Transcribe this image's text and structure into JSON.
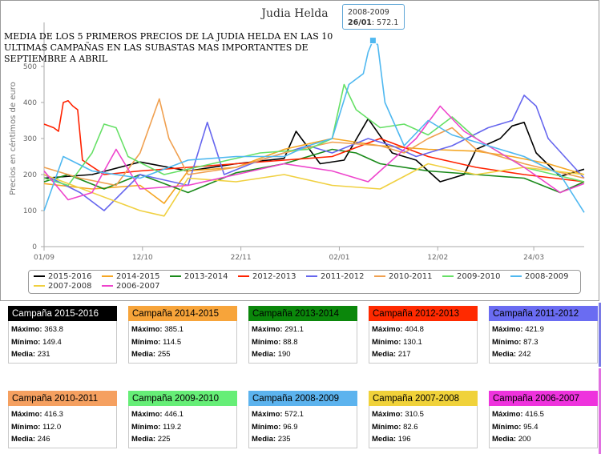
{
  "page": {
    "subtitle": "MEDIA DE LOS 5 PRIMEROS PRECIOS DE LA JUDIA HELDA EN LAS 10 ULTIMAS CAMPAÑAS EN LAS SUBASTAS MAS IMPORTANTES DE SEPTIEMBRE A ABRIL",
    "tooltip": {
      "series": "2008-2009",
      "date": "26/01",
      "value": "572.1"
    }
  },
  "chart_data": {
    "type": "line",
    "title": "Judia Helda",
    "ylabel": "Precios en céntimos de euro",
    "xlabel": "",
    "ylim": [
      0,
      600
    ],
    "yticks": [
      0,
      100,
      200,
      300,
      400,
      500
    ],
    "x": [
      "01/09",
      "12/10",
      "22/11",
      "02/01",
      "12/02",
      "24/03"
    ],
    "x_tick_days": [
      0,
      41,
      82,
      123,
      164,
      204
    ],
    "x_max_day": 225,
    "grid": false,
    "legend_position": "bottom",
    "series": [
      {
        "name": "2015-2016",
        "color": "#000000",
        "points": [
          [
            0,
            190
          ],
          [
            20,
            200
          ],
          [
            40,
            235
          ],
          [
            60,
            210
          ],
          [
            80,
            230
          ],
          [
            100,
            245
          ],
          [
            105,
            320
          ],
          [
            115,
            230
          ],
          [
            125,
            240
          ],
          [
            135,
            355
          ],
          [
            145,
            260
          ],
          [
            155,
            240
          ],
          [
            165,
            180
          ],
          [
            175,
            200
          ],
          [
            180,
            270
          ],
          [
            190,
            300
          ],
          [
            195,
            335
          ],
          [
            200,
            345
          ],
          [
            205,
            260
          ],
          [
            215,
            195
          ],
          [
            225,
            215
          ]
        ]
      },
      {
        "name": "2014-2015",
        "color": "#f5a623",
        "points": [
          [
            0,
            175
          ],
          [
            20,
            160
          ],
          [
            40,
            170
          ],
          [
            50,
            120
          ],
          [
            60,
            210
          ],
          [
            80,
            220
          ],
          [
            100,
            270
          ],
          [
            120,
            300
          ],
          [
            140,
            280
          ],
          [
            160,
            270
          ],
          [
            180,
            265
          ],
          [
            195,
            250
          ],
          [
            210,
            230
          ],
          [
            225,
            200
          ]
        ]
      },
      {
        "name": "2013-2014",
        "color": "#1a8a1a",
        "points": [
          [
            0,
            180
          ],
          [
            10,
            200
          ],
          [
            25,
            160
          ],
          [
            40,
            200
          ],
          [
            60,
            150
          ],
          [
            80,
            205
          ],
          [
            100,
            230
          ],
          [
            120,
            270
          ],
          [
            130,
            260
          ],
          [
            140,
            230
          ],
          [
            160,
            210
          ],
          [
            180,
            200
          ],
          [
            200,
            190
          ],
          [
            215,
            150
          ],
          [
            225,
            180
          ]
        ]
      },
      {
        "name": "2012-2013",
        "color": "#ff2200",
        "points": [
          [
            0,
            340
          ],
          [
            4,
            330
          ],
          [
            6,
            320
          ],
          [
            8,
            400
          ],
          [
            10,
            405
          ],
          [
            12,
            390
          ],
          [
            14,
            380
          ],
          [
            16,
            240
          ],
          [
            25,
            200
          ],
          [
            40,
            210
          ],
          [
            60,
            220
          ],
          [
            80,
            230
          ],
          [
            100,
            240
          ],
          [
            120,
            250
          ],
          [
            140,
            300
          ],
          [
            160,
            250
          ],
          [
            180,
            220
          ],
          [
            200,
            200
          ],
          [
            225,
            180
          ]
        ]
      },
      {
        "name": "2011-2012",
        "color": "#6666ee",
        "points": [
          [
            0,
            200
          ],
          [
            15,
            150
          ],
          [
            25,
            100
          ],
          [
            40,
            200
          ],
          [
            60,
            170
          ],
          [
            68,
            345
          ],
          [
            75,
            200
          ],
          [
            90,
            240
          ],
          [
            110,
            280
          ],
          [
            120,
            260
          ],
          [
            135,
            300
          ],
          [
            145,
            280
          ],
          [
            155,
            250
          ],
          [
            170,
            280
          ],
          [
            185,
            330
          ],
          [
            195,
            350
          ],
          [
            200,
            420
          ],
          [
            205,
            390
          ],
          [
            210,
            300
          ],
          [
            225,
            190
          ]
        ]
      },
      {
        "name": "2010-2011",
        "color": "#f0a050",
        "points": [
          [
            0,
            220
          ],
          [
            15,
            190
          ],
          [
            30,
            170
          ],
          [
            40,
            260
          ],
          [
            48,
            410
          ],
          [
            52,
            300
          ],
          [
            60,
            200
          ],
          [
            80,
            220
          ],
          [
            100,
            260
          ],
          [
            120,
            290
          ],
          [
            140,
            280
          ],
          [
            150,
            260
          ],
          [
            160,
            300
          ],
          [
            170,
            330
          ],
          [
            180,
            270
          ],
          [
            200,
            230
          ],
          [
            225,
            190
          ]
        ]
      },
      {
        "name": "2009-2010",
        "color": "#66e066",
        "points": [
          [
            0,
            190
          ],
          [
            10,
            170
          ],
          [
            20,
            260
          ],
          [
            25,
            340
          ],
          [
            30,
            330
          ],
          [
            35,
            250
          ],
          [
            50,
            200
          ],
          [
            70,
            230
          ],
          [
            90,
            260
          ],
          [
            110,
            270
          ],
          [
            120,
            300
          ],
          [
            125,
            450
          ],
          [
            130,
            380
          ],
          [
            140,
            330
          ],
          [
            150,
            340
          ],
          [
            160,
            310
          ],
          [
            170,
            360
          ],
          [
            180,
            300
          ],
          [
            200,
            220
          ],
          [
            225,
            180
          ]
        ]
      },
      {
        "name": "2008-2009",
        "color": "#4fb8f0",
        "points": [
          [
            0,
            100
          ],
          [
            8,
            250
          ],
          [
            20,
            210
          ],
          [
            40,
            190
          ],
          [
            60,
            240
          ],
          [
            80,
            250
          ],
          [
            100,
            250
          ],
          [
            110,
            280
          ],
          [
            120,
            300
          ],
          [
            127,
            450
          ],
          [
            133,
            480
          ],
          [
            135,
            540
          ],
          [
            137,
            572
          ],
          [
            139,
            560
          ],
          [
            142,
            400
          ],
          [
            150,
            280
          ],
          [
            160,
            350
          ],
          [
            170,
            310
          ],
          [
            180,
            290
          ],
          [
            200,
            250
          ],
          [
            215,
            200
          ],
          [
            225,
            95
          ]
        ]
      },
      {
        "name": "2007-2008",
        "color": "#f0d040",
        "points": [
          [
            0,
            200
          ],
          [
            20,
            150
          ],
          [
            40,
            100
          ],
          [
            50,
            85
          ],
          [
            60,
            190
          ],
          [
            80,
            180
          ],
          [
            100,
            200
          ],
          [
            120,
            170
          ],
          [
            140,
            160
          ],
          [
            160,
            230
          ],
          [
            180,
            200
          ],
          [
            200,
            220
          ],
          [
            225,
            200
          ]
        ]
      },
      {
        "name": "2006-2007",
        "color": "#ee44cc",
        "points": [
          [
            0,
            210
          ],
          [
            10,
            130
          ],
          [
            20,
            150
          ],
          [
            30,
            270
          ],
          [
            40,
            160
          ],
          [
            60,
            170
          ],
          [
            80,
            200
          ],
          [
            100,
            230
          ],
          [
            120,
            210
          ],
          [
            135,
            180
          ],
          [
            155,
            300
          ],
          [
            165,
            390
          ],
          [
            175,
            320
          ],
          [
            190,
            260
          ],
          [
            200,
            220
          ],
          [
            215,
            150
          ],
          [
            225,
            175
          ]
        ]
      }
    ]
  },
  "cards": [
    {
      "title": "Campaña 2015-2016",
      "bg": "#000000",
      "fg": "#ffffff",
      "max_label": "Máximo:",
      "max": "363.8",
      "min_label": "Mínimo:",
      "min": "149.4",
      "avg_label": "Media:",
      "avg": "231"
    },
    {
      "title": "Campaña 2014-2015",
      "bg": "#f7a43a",
      "fg": "#000000",
      "max_label": "Máximo:",
      "max": "385.1",
      "min_label": "Mínimo:",
      "min": "114.5",
      "avg_label": "Media:",
      "avg": "255"
    },
    {
      "title": "Campaña 2013-2014",
      "bg": "#0b870b",
      "fg": "#000000",
      "max_label": "Máximo:",
      "max": "291.1",
      "min_label": "Mínimo:",
      "min": "88.8",
      "avg_label": "Media:",
      "avg": "190"
    },
    {
      "title": "Campaña 2012-2013",
      "bg": "#ff2a00",
      "fg": "#000000",
      "max_label": "Máximo:",
      "max": "404.8",
      "min_label": "Mínimo:",
      "min": "130.1",
      "avg_label": "Media:",
      "avg": "217"
    },
    {
      "title": "Campaña 2011-2012",
      "bg": "#6a6cf2",
      "fg": "#000000",
      "max_label": "Máximo:",
      "max": "421.9",
      "min_label": "Mínimo:",
      "min": "87.3",
      "avg_label": "Media:",
      "avg": "242"
    },
    {
      "title": "Campaña 2010-2011",
      "bg": "#f5a060",
      "fg": "#000000",
      "max_label": "Máximo:",
      "max": "416.3",
      "min_label": "Mínimo:",
      "min": "112.0",
      "avg_label": "Media:",
      "avg": "246"
    },
    {
      "title": "Campaña 2009-2010",
      "bg": "#66ee77",
      "fg": "#000000",
      "max_label": "Máximo:",
      "max": "446.1",
      "min_label": "Mínimo:",
      "min": "119.2",
      "avg_label": "Media:",
      "avg": "225"
    },
    {
      "title": "Campaña 2008-2009",
      "bg": "#5cb3ee",
      "fg": "#000000",
      "max_label": "Máximo:",
      "max": "572.1",
      "min_label": "Mínimo:",
      "min": "96.9",
      "avg_label": "Media:",
      "avg": "235"
    },
    {
      "title": "Campaña 2007-2008",
      "bg": "#f0d23a",
      "fg": "#000000",
      "max_label": "Máximo:",
      "max": "310.5",
      "min_label": "Mínimo:",
      "min": "82.6",
      "avg_label": "Media:",
      "avg": "196"
    },
    {
      "title": "Campaña 2006-2007",
      "bg": "#ee33dd",
      "fg": "#000000",
      "max_label": "Máximo:",
      "max": "416.5",
      "min_label": "Mínimo:",
      "min": "95.4",
      "avg_label": "Media:",
      "avg": "200"
    }
  ]
}
